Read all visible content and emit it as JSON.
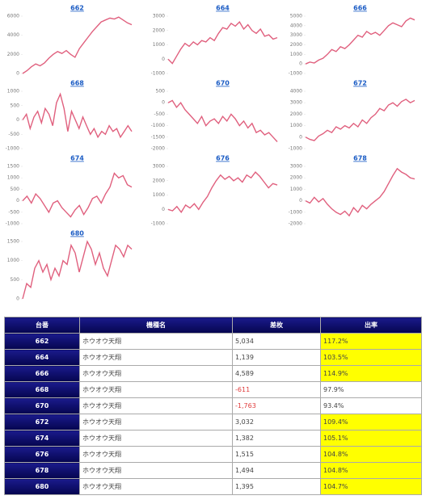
{
  "chart_data": [
    {
      "type": "line",
      "title": "662",
      "color": "#e0607e",
      "ylim": [
        0,
        6000
      ],
      "yticks": [
        0,
        2000,
        4000,
        6000
      ],
      "values": [
        0,
        300,
        700,
        1000,
        800,
        1100,
        1600,
        2000,
        2300,
        2100,
        2400,
        2000,
        1700,
        2600,
        3200,
        3800,
        4400,
        4900,
        5400,
        5600,
        5800,
        5700,
        5900,
        5600,
        5300,
        5100
      ]
    },
    {
      "type": "line",
      "title": "664",
      "color": "#e0607e",
      "ylim": [
        -1000,
        3000
      ],
      "yticks": [
        -1000,
        0,
        1000,
        2000,
        3000
      ],
      "values": [
        0,
        -300,
        200,
        700,
        1100,
        900,
        1200,
        1000,
        1300,
        1200,
        1500,
        1300,
        1800,
        2200,
        2100,
        2500,
        2300,
        2600,
        2100,
        2400,
        2000,
        1800,
        2100,
        1600,
        1700,
        1400,
        1500
      ]
    },
    {
      "type": "line",
      "title": "666",
      "color": "#e0607e",
      "ylim": [
        -1000,
        5000
      ],
      "yticks": [
        -1000,
        0,
        1000,
        2000,
        3000,
        4000,
        5000
      ],
      "values": [
        0,
        200,
        100,
        400,
        600,
        1000,
        1500,
        1300,
        1800,
        1600,
        2000,
        2500,
        3000,
        2800,
        3400,
        3100,
        3300,
        3000,
        3500,
        4000,
        4300,
        4100,
        3900,
        4500,
        4800,
        4600
      ]
    },
    {
      "type": "line",
      "title": "668",
      "color": "#e0607e",
      "ylim": [
        -1000,
        1000
      ],
      "yticks": [
        -1000,
        -500,
        0,
        500,
        1000
      ],
      "values": [
        0,
        200,
        -300,
        100,
        300,
        -100,
        400,
        200,
        -200,
        600,
        900,
        400,
        -400,
        300,
        0,
        -300,
        100,
        -200,
        -500,
        -300,
        -600,
        -400,
        -500,
        -200,
        -400,
        -300,
        -600,
        -400,
        -200,
        -400
      ]
    },
    {
      "type": "line",
      "title": "670",
      "color": "#e0607e",
      "ylim": [
        -2000,
        500
      ],
      "yticks": [
        -2000,
        -1500,
        -1000,
        -500,
        0,
        500
      ],
      "values": [
        0,
        100,
        -200,
        0,
        -300,
        -500,
        -700,
        -900,
        -600,
        -1000,
        -800,
        -700,
        -900,
        -600,
        -800,
        -500,
        -700,
        -1000,
        -800,
        -1100,
        -900,
        -1300,
        -1200,
        -1400,
        -1300,
        -1500,
        -1700
      ]
    },
    {
      "type": "line",
      "title": "672",
      "color": "#e0607e",
      "ylim": [
        -1000,
        4000
      ],
      "yticks": [
        -1000,
        0,
        1000,
        2000,
        3000,
        4000
      ],
      "values": [
        0,
        -200,
        -300,
        100,
        300,
        600,
        400,
        900,
        700,
        1000,
        800,
        1200,
        900,
        1500,
        1200,
        1700,
        2000,
        2500,
        2300,
        2800,
        3000,
        2700,
        3100,
        3300,
        3000,
        3200
      ]
    },
    {
      "type": "line",
      "title": "674",
      "color": "#e0607e",
      "ylim": [
        -1000,
        1500
      ],
      "yticks": [
        -1000,
        -500,
        0,
        500,
        1000,
        1500
      ],
      "values": [
        0,
        200,
        -100,
        300,
        100,
        -200,
        -500,
        -100,
        0,
        -300,
        -500,
        -700,
        -400,
        -200,
        -600,
        -300,
        100,
        200,
        -100,
        300,
        600,
        1200,
        1000,
        1100,
        700,
        600
      ]
    },
    {
      "type": "line",
      "title": "676",
      "color": "#e0607e",
      "ylim": [
        -1000,
        3000
      ],
      "yticks": [
        -1000,
        0,
        1000,
        2000,
        3000
      ],
      "values": [
        0,
        -100,
        200,
        -200,
        300,
        100,
        400,
        0,
        500,
        900,
        1500,
        2000,
        2400,
        2100,
        2300,
        2000,
        2200,
        1900,
        2400,
        2200,
        2600,
        2300,
        1900,
        1500,
        1800,
        1700
      ]
    },
    {
      "type": "line",
      "title": "678",
      "color": "#e0607e",
      "ylim": [
        -2000,
        3000
      ],
      "yticks": [
        -2000,
        -1000,
        0,
        1000,
        2000,
        3000
      ],
      "values": [
        0,
        -200,
        300,
        -100,
        200,
        -300,
        -700,
        -1000,
        -1200,
        -900,
        -1300,
        -600,
        -1000,
        -400,
        -700,
        -300,
        0,
        300,
        800,
        1500,
        2200,
        2800,
        2500,
        2300,
        2000,
        1900
      ]
    },
    {
      "type": "line",
      "title": "680",
      "color": "#e0607e",
      "ylim": [
        0,
        1500
      ],
      "yticks": [
        0,
        500,
        1000,
        1500
      ],
      "values": [
        0,
        400,
        300,
        800,
        1000,
        700,
        900,
        500,
        800,
        600,
        1000,
        900,
        1400,
        1200,
        700,
        1100,
        1500,
        1300,
        900,
        1200,
        800,
        600,
        1000,
        1400,
        1300,
        1100,
        1400,
        1300
      ]
    }
  ],
  "table": {
    "header": [
      "台番",
      "機種名",
      "差枚",
      "出率"
    ],
    "rows": [
      [
        "662",
        "ホウオウ天翔",
        "5,034",
        "117.2%"
      ],
      [
        "664",
        "ホウオウ天翔",
        "1,139",
        "103.5%"
      ],
      [
        "666",
        "ホウオウ天翔",
        "4,589",
        "114.9%"
      ],
      [
        "668",
        "ホウオウ天翔",
        "-611",
        "97.9%"
      ],
      [
        "670",
        "ホウオウ天翔",
        "-1,763",
        "93.4%"
      ],
      [
        "672",
        "ホウオウ天翔",
        "3,032",
        "109.4%"
      ],
      [
        "674",
        "ホウオウ天翔",
        "1,382",
        "105.1%"
      ],
      [
        "676",
        "ホウオウ天翔",
        "1,515",
        "104.8%"
      ],
      [
        "678",
        "ホウオウ天翔",
        "1,494",
        "104.8%"
      ],
      [
        "680",
        "ホウオウ天翔",
        "1,395",
        "104.7%"
      ]
    ]
  }
}
